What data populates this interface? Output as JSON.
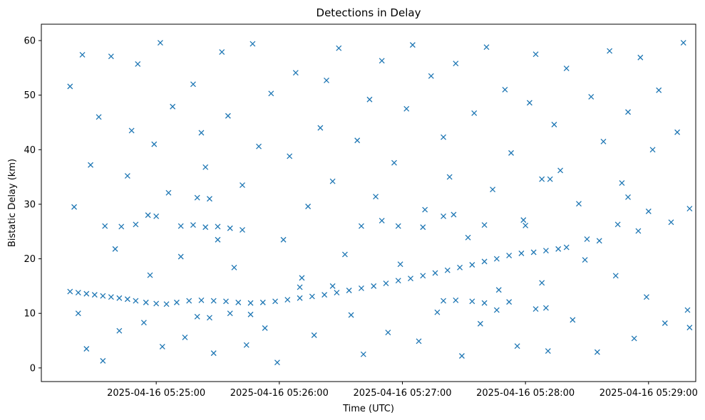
{
  "chart_data": {
    "type": "scatter",
    "title": "Detections in Delay",
    "xlabel": "Time (UTC)",
    "ylabel": "Bistatic Delay (km)",
    "xlim": [
      "2025-04-16 05:24:04",
      "2025-04-16 05:29:23"
    ],
    "ylim": [
      -2.5,
      63
    ],
    "x_ticks": [
      "2025-04-16 05:25:00",
      "2025-04-16 05:26:00",
      "2025-04-16 05:27:00",
      "2025-04-16 05:28:00",
      "2025-04-16 05:29:00"
    ],
    "y_ticks": [
      0,
      10,
      20,
      30,
      40,
      50,
      60
    ],
    "marker": "x",
    "color": "#1f77b4",
    "grid": false,
    "series": [
      {
        "name": "",
        "points": [
          [
            "2025-04-16 05:24:18",
            14.0
          ],
          [
            "2025-04-16 05:24:22",
            13.8
          ],
          [
            "2025-04-16 05:24:26",
            13.6
          ],
          [
            "2025-04-16 05:24:30",
            13.4
          ],
          [
            "2025-04-16 05:24:34",
            13.2
          ],
          [
            "2025-04-16 05:24:38",
            13.0
          ],
          [
            "2025-04-16 05:24:42",
            12.8
          ],
          [
            "2025-04-16 05:24:46",
            12.6
          ],
          [
            "2025-04-16 05:24:50",
            12.3
          ],
          [
            "2025-04-16 05:24:55",
            12.0
          ],
          [
            "2025-04-16 05:25:00",
            11.8
          ],
          [
            "2025-04-16 05:25:05",
            11.7
          ],
          [
            "2025-04-16 05:25:10",
            12.0
          ],
          [
            "2025-04-16 05:25:16",
            12.3
          ],
          [
            "2025-04-16 05:25:22",
            12.4
          ],
          [
            "2025-04-16 05:25:28",
            12.3
          ],
          [
            "2025-04-16 05:25:34",
            12.2
          ],
          [
            "2025-04-16 05:25:40",
            12.0
          ],
          [
            "2025-04-16 05:25:46",
            11.9
          ],
          [
            "2025-04-16 05:25:52",
            12.0
          ],
          [
            "2025-04-16 05:25:58",
            12.2
          ],
          [
            "2025-04-16 05:26:04",
            12.5
          ],
          [
            "2025-04-16 05:26:10",
            12.8
          ],
          [
            "2025-04-16 05:26:16",
            13.1
          ],
          [
            "2025-04-16 05:26:22",
            13.4
          ],
          [
            "2025-04-16 05:26:28",
            13.8
          ],
          [
            "2025-04-16 05:26:34",
            14.2
          ],
          [
            "2025-04-16 05:26:40",
            14.6
          ],
          [
            "2025-04-16 05:26:46",
            15.0
          ],
          [
            "2025-04-16 05:26:52",
            15.5
          ],
          [
            "2025-04-16 05:26:58",
            16.0
          ],
          [
            "2025-04-16 05:27:04",
            16.4
          ],
          [
            "2025-04-16 05:27:10",
            16.9
          ],
          [
            "2025-04-16 05:27:16",
            17.4
          ],
          [
            "2025-04-16 05:27:22",
            17.9
          ],
          [
            "2025-04-16 05:27:28",
            18.4
          ],
          [
            "2025-04-16 05:27:34",
            18.9
          ],
          [
            "2025-04-16 05:27:40",
            19.5
          ],
          [
            "2025-04-16 05:27:46",
            20.0
          ],
          [
            "2025-04-16 05:27:52",
            20.6
          ],
          [
            "2025-04-16 05:27:58",
            21.0
          ],
          [
            "2025-04-16 05:28:04",
            21.2
          ],
          [
            "2025-04-16 05:28:10",
            21.5
          ],
          [
            "2025-04-16 05:28:16",
            21.8
          ],
          [
            "2025-04-16 05:28:20",
            22.1
          ],
          [
            "2025-04-16 05:24:35",
            26.0
          ],
          [
            "2025-04-16 05:24:43",
            25.9
          ],
          [
            "2025-04-16 05:24:50",
            26.3
          ],
          [
            "2025-04-16 05:24:56",
            28.0
          ],
          [
            "2025-04-16 05:25:00",
            27.8
          ],
          [
            "2025-04-16 05:25:12",
            26.0
          ],
          [
            "2025-04-16 05:25:18",
            26.2
          ],
          [
            "2025-04-16 05:25:24",
            25.8
          ],
          [
            "2025-04-16 05:25:30",
            25.9
          ],
          [
            "2025-04-16 05:25:36",
            25.6
          ],
          [
            "2025-04-16 05:25:42",
            25.3
          ],
          [
            "2025-04-16 05:25:20",
            31.2
          ],
          [
            "2025-04-16 05:25:26",
            31.0
          ],
          [
            "2025-04-16 05:25:30",
            23.5
          ],
          [
            "2025-04-16 05:26:40",
            26.0
          ],
          [
            "2025-04-16 05:26:50",
            27.0
          ],
          [
            "2025-04-16 05:26:58",
            26.0
          ],
          [
            "2025-04-16 05:27:10",
            25.8
          ],
          [
            "2025-04-16 05:27:20",
            27.8
          ],
          [
            "2025-04-16 05:27:25",
            28.1
          ],
          [
            "2025-04-16 05:27:40",
            26.2
          ],
          [
            "2025-04-16 05:28:00",
            26.1
          ],
          [
            "2025-04-16 05:28:08",
            34.6
          ],
          [
            "2025-04-16 05:28:12",
            34.6
          ],
          [
            "2025-04-16 05:28:30",
            23.6
          ],
          [
            "2025-04-16 05:28:36",
            23.3
          ],
          [
            "2025-04-16 05:28:45",
            26.3
          ],
          [
            "2025-04-16 05:28:50",
            31.3
          ],
          [
            "2025-04-16 05:28:55",
            25.1
          ],
          [
            "2025-04-16 05:29:00",
            28.7
          ],
          [
            "2025-04-16 05:27:20",
            12.3
          ],
          [
            "2025-04-16 05:27:26",
            12.4
          ],
          [
            "2025-04-16 05:27:34",
            12.2
          ],
          [
            "2025-04-16 05:27:40",
            11.9
          ],
          [
            "2025-04-16 05:27:46",
            10.6
          ],
          [
            "2025-04-16 05:27:52",
            12.1
          ],
          [
            "2025-04-16 05:25:20",
            9.4
          ],
          [
            "2025-04-16 05:25:26",
            9.2
          ],
          [
            "2025-04-16 05:25:36",
            10.0
          ],
          [
            "2025-04-16 05:25:46",
            9.8
          ],
          [
            "2025-04-16 05:26:10",
            14.8
          ],
          [
            "2025-04-16 05:26:26",
            15.0
          ],
          [
            "2025-04-16 05:28:05",
            10.8
          ],
          [
            "2025-04-16 05:28:10",
            11.0
          ],
          [
            "2025-04-16 05:24:18",
            51.6
          ],
          [
            "2025-04-16 05:24:20",
            29.5
          ],
          [
            "2025-04-16 05:24:22",
            10.0
          ],
          [
            "2025-04-16 05:24:24",
            57.4
          ],
          [
            "2025-04-16 05:24:26",
            3.5
          ],
          [
            "2025-04-16 05:24:28",
            37.2
          ],
          [
            "2025-04-16 05:24:32",
            46.0
          ],
          [
            "2025-04-16 05:24:34",
            1.3
          ],
          [
            "2025-04-16 05:24:38",
            57.1
          ],
          [
            "2025-04-16 05:24:40",
            21.8
          ],
          [
            "2025-04-16 05:24:42",
            6.8
          ],
          [
            "2025-04-16 05:24:46",
            35.2
          ],
          [
            "2025-04-16 05:24:48",
            43.5
          ],
          [
            "2025-04-16 05:24:51",
            55.7
          ],
          [
            "2025-04-16 05:24:54",
            8.3
          ],
          [
            "2025-04-16 05:24:57",
            17.0
          ],
          [
            "2025-04-16 05:24:59",
            41.0
          ],
          [
            "2025-04-16 05:25:02",
            59.6
          ],
          [
            "2025-04-16 05:25:03",
            3.9
          ],
          [
            "2025-04-16 05:25:06",
            32.1
          ],
          [
            "2025-04-16 05:25:08",
            47.9
          ],
          [
            "2025-04-16 05:25:12",
            20.4
          ],
          [
            "2025-04-16 05:25:14",
            5.6
          ],
          [
            "2025-04-16 05:25:18",
            52.0
          ],
          [
            "2025-04-16 05:25:22",
            43.1
          ],
          [
            "2025-04-16 05:25:24",
            36.8
          ],
          [
            "2025-04-16 05:25:28",
            2.7
          ],
          [
            "2025-04-16 05:25:32",
            57.9
          ],
          [
            "2025-04-16 05:25:35",
            46.2
          ],
          [
            "2025-04-16 05:25:38",
            18.4
          ],
          [
            "2025-04-16 05:25:42",
            33.5
          ],
          [
            "2025-04-16 05:25:44",
            4.2
          ],
          [
            "2025-04-16 05:25:47",
            59.4
          ],
          [
            "2025-04-16 05:25:50",
            40.6
          ],
          [
            "2025-04-16 05:25:53",
            7.3
          ],
          [
            "2025-04-16 05:25:56",
            50.3
          ],
          [
            "2025-04-16 05:25:59",
            1.0
          ],
          [
            "2025-04-16 05:26:02",
            23.5
          ],
          [
            "2025-04-16 05:26:05",
            38.8
          ],
          [
            "2025-04-16 05:26:08",
            54.1
          ],
          [
            "2025-04-16 05:26:11",
            16.5
          ],
          [
            "2025-04-16 05:26:14",
            29.6
          ],
          [
            "2025-04-16 05:26:17",
            6.0
          ],
          [
            "2025-04-16 05:26:20",
            44.0
          ],
          [
            "2025-04-16 05:26:23",
            52.7
          ],
          [
            "2025-04-16 05:26:26",
            34.2
          ],
          [
            "2025-04-16 05:26:29",
            58.6
          ],
          [
            "2025-04-16 05:26:32",
            20.8
          ],
          [
            "2025-04-16 05:26:35",
            9.7
          ],
          [
            "2025-04-16 05:26:38",
            41.7
          ],
          [
            "2025-04-16 05:26:41",
            2.5
          ],
          [
            "2025-04-16 05:26:44",
            49.2
          ],
          [
            "2025-04-16 05:26:47",
            31.4
          ],
          [
            "2025-04-16 05:26:50",
            56.3
          ],
          [
            "2025-04-16 05:26:53",
            6.5
          ],
          [
            "2025-04-16 05:26:56",
            37.6
          ],
          [
            "2025-04-16 05:26:59",
            19.0
          ],
          [
            "2025-04-16 05:27:02",
            47.5
          ],
          [
            "2025-04-16 05:27:05",
            59.2
          ],
          [
            "2025-04-16 05:27:08",
            4.9
          ],
          [
            "2025-04-16 05:27:11",
            29.0
          ],
          [
            "2025-04-16 05:27:14",
            53.5
          ],
          [
            "2025-04-16 05:27:17",
            10.2
          ],
          [
            "2025-04-16 05:27:20",
            42.3
          ],
          [
            "2025-04-16 05:27:23",
            35.0
          ],
          [
            "2025-04-16 05:27:26",
            55.8
          ],
          [
            "2025-04-16 05:27:29",
            2.2
          ],
          [
            "2025-04-16 05:27:32",
            23.9
          ],
          [
            "2025-04-16 05:27:35",
            46.7
          ],
          [
            "2025-04-16 05:27:38",
            8.1
          ],
          [
            "2025-04-16 05:27:41",
            58.8
          ],
          [
            "2025-04-16 05:27:44",
            32.7
          ],
          [
            "2025-04-16 05:27:47",
            14.3
          ],
          [
            "2025-04-16 05:27:50",
            51.0
          ],
          [
            "2025-04-16 05:27:53",
            39.4
          ],
          [
            "2025-04-16 05:27:56",
            4.0
          ],
          [
            "2025-04-16 05:27:59",
            27.1
          ],
          [
            "2025-04-16 05:28:02",
            48.6
          ],
          [
            "2025-04-16 05:28:05",
            57.5
          ],
          [
            "2025-04-16 05:28:08",
            15.6
          ],
          [
            "2025-04-16 05:28:11",
            3.1
          ],
          [
            "2025-04-16 05:28:14",
            44.6
          ],
          [
            "2025-04-16 05:28:17",
            36.2
          ],
          [
            "2025-04-16 05:28:20",
            54.9
          ],
          [
            "2025-04-16 05:28:23",
            8.8
          ],
          [
            "2025-04-16 05:28:26",
            30.1
          ],
          [
            "2025-04-16 05:28:29",
            19.8
          ],
          [
            "2025-04-16 05:28:32",
            49.7
          ],
          [
            "2025-04-16 05:28:35",
            2.9
          ],
          [
            "2025-04-16 05:28:38",
            41.5
          ],
          [
            "2025-04-16 05:28:41",
            58.1
          ],
          [
            "2025-04-16 05:28:44",
            16.9
          ],
          [
            "2025-04-16 05:28:47",
            33.9
          ],
          [
            "2025-04-16 05:28:50",
            46.9
          ],
          [
            "2025-04-16 05:28:53",
            5.4
          ],
          [
            "2025-04-16 05:28:56",
            56.9
          ],
          [
            "2025-04-16 05:28:59",
            13.0
          ],
          [
            "2025-04-16 05:29:02",
            40.0
          ],
          [
            "2025-04-16 05:29:05",
            50.9
          ],
          [
            "2025-04-16 05:29:08",
            8.2
          ],
          [
            "2025-04-16 05:29:11",
            26.7
          ],
          [
            "2025-04-16 05:29:14",
            43.2
          ],
          [
            "2025-04-16 05:29:17",
            59.6
          ],
          [
            "2025-04-16 05:29:19",
            10.6
          ],
          [
            "2025-04-16 05:29:20",
            29.2
          ],
          [
            "2025-04-16 05:29:20",
            7.4
          ]
        ]
      }
    ]
  }
}
